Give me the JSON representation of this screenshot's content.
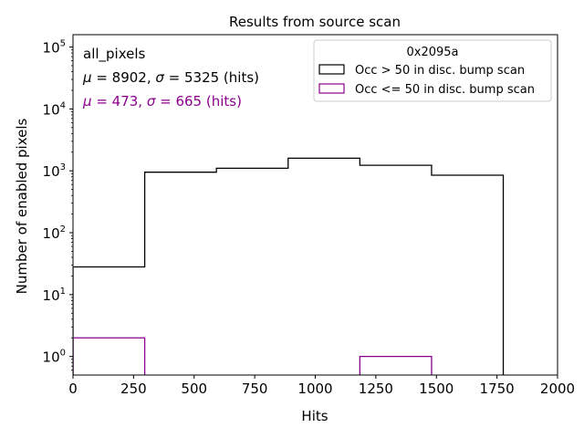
{
  "chart_data": {
    "type": "histogram",
    "title": "Results from source scan",
    "xlabel": "Hits",
    "ylabel": "Number of enabled pixels",
    "xlim": [
      0,
      2000
    ],
    "ylim_log10": [
      -0.3,
      5.2
    ],
    "yscale": "log",
    "x_ticks": [
      0,
      250,
      500,
      750,
      1000,
      1250,
      1500,
      1750,
      2000
    ],
    "x_tick_labels": [
      "0",
      "250",
      "500",
      "750",
      "1000",
      "1250",
      "1500",
      "1750",
      "2000"
    ],
    "y_ticks": [
      1,
      10,
      100,
      1000,
      10000,
      100000
    ],
    "y_tick_labels": [
      {
        "base": "10",
        "exp": "0"
      },
      {
        "base": "10",
        "exp": "1"
      },
      {
        "base": "10",
        "exp": "2"
      },
      {
        "base": "10",
        "exp": "3"
      },
      {
        "base": "10",
        "exp": "4"
      },
      {
        "base": "10",
        "exp": "5"
      }
    ],
    "bin_edges": [
      0,
      296,
      592,
      888,
      1184,
      1480,
      1776
    ],
    "series": [
      {
        "name": "Occ > 50 in disc. bump scan",
        "color": "#000000",
        "values": [
          28,
          950,
          1100,
          1600,
          1230,
          850
        ]
      },
      {
        "name": "Occ <= 50 in disc. bump scan",
        "color": "#8b008b",
        "values": [
          2,
          0,
          0,
          0,
          1,
          0
        ]
      }
    ],
    "legend": {
      "title": "0x2095a",
      "position": "top-right"
    },
    "annotations": [
      {
        "id": "header",
        "color": "#000000",
        "parts": [
          {
            "t": "all_pixels"
          }
        ]
      },
      {
        "id": "stats-1",
        "color": "#000000",
        "parts": [
          {
            "t": "μ",
            "italic": true
          },
          {
            "t": " = 8902, "
          },
          {
            "t": "σ",
            "italic": true
          },
          {
            "t": " = 5325 (hits)"
          }
        ]
      },
      {
        "id": "stats-2",
        "color": "#8b008b",
        "parts": [
          {
            "t": "μ",
            "italic": true
          },
          {
            "t": " = 473, "
          },
          {
            "t": "σ",
            "italic": true
          },
          {
            "t": " = 665 (hits)"
          }
        ]
      }
    ]
  }
}
